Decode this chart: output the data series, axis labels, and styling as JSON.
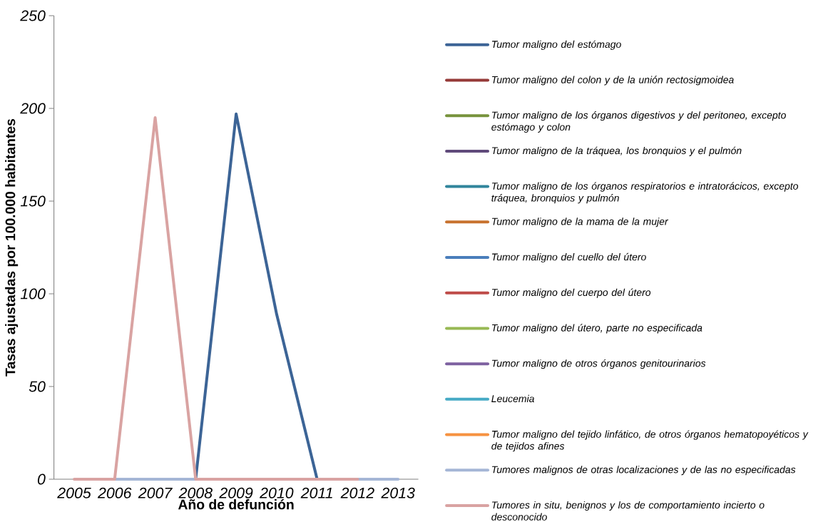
{
  "chart_data": {
    "type": "line",
    "xlabel": "Año de defunción",
    "ylabel": "Tasas ajustadas por 100.000 habitantes",
    "categories": [
      "2005",
      "2006",
      "2007",
      "2008",
      "2009",
      "2010",
      "2011",
      "2012",
      "2013"
    ],
    "ylim": [
      0,
      250
    ],
    "yticks": [
      0,
      50,
      100,
      150,
      200,
      250
    ],
    "grid": false,
    "legend": "right",
    "marker": "none",
    "line_style": "solid",
    "series": [
      {
        "name": "Tumor maligno del estómago",
        "color": "#3c6496",
        "values": [
          null,
          null,
          null,
          0,
          197,
          89,
          0,
          null,
          null
        ]
      },
      {
        "name": "Tumor maligno del colon y de la unión rectosigmoidea",
        "color": "#963a38",
        "values": [
          null,
          null,
          null,
          null,
          null,
          null,
          null,
          null,
          null
        ]
      },
      {
        "name": "Tumor maligno de los órganos digestivos y del peritoneo, excepto estómago y colon",
        "color": "#77933c",
        "values": [
          null,
          null,
          null,
          null,
          null,
          null,
          null,
          null,
          null
        ]
      },
      {
        "name": "Tumor maligno de la tráquea, los bronquios y el pulmón",
        "color": "#604a7b",
        "values": [
          null,
          null,
          null,
          null,
          null,
          null,
          null,
          null,
          null
        ]
      },
      {
        "name": "Tumor maligno de los órganos respiratorios e intratorácicos, excepto tráquea, bronquios y pulmón",
        "color": "#31859c",
        "values": [
          null,
          null,
          null,
          null,
          null,
          null,
          null,
          null,
          null
        ]
      },
      {
        "name": "Tumor maligno de la mama de la mujer",
        "color": "#c8722e",
        "values": [
          null,
          null,
          null,
          null,
          null,
          null,
          null,
          null,
          null
        ]
      },
      {
        "name": "Tumor maligno del cuello del útero",
        "color": "#4a7ebb",
        "values": [
          null,
          null,
          null,
          null,
          null,
          null,
          null,
          null,
          null
        ]
      },
      {
        "name": "Tumor maligno del cuerpo del útero",
        "color": "#be4b48",
        "values": [
          null,
          null,
          null,
          null,
          null,
          null,
          null,
          null,
          null
        ]
      },
      {
        "name": "Tumor maligno del útero, parte no especificada",
        "color": "#98b954",
        "values": [
          null,
          null,
          null,
          null,
          null,
          null,
          null,
          null,
          null
        ]
      },
      {
        "name": "Tumor maligno de otros órganos genitourinarios",
        "color": "#7d60a0",
        "values": [
          null,
          null,
          null,
          null,
          null,
          null,
          null,
          null,
          null
        ]
      },
      {
        "name": "Leucemia",
        "color": "#46aac5",
        "values": [
          null,
          null,
          null,
          null,
          null,
          null,
          null,
          null,
          null
        ]
      },
      {
        "name": "Tumor maligno del tejido linfático, de otros órganos hematopoyéticos y de tejidos afines",
        "color": "#f69240",
        "values": [
          null,
          null,
          null,
          null,
          null,
          null,
          null,
          null,
          null
        ]
      },
      {
        "name": "Tumores malignos de otras localizaciones y de las no especificadas",
        "color": "#a5b6d6",
        "values": [
          null,
          0,
          0,
          0,
          null,
          null,
          null,
          0,
          0
        ]
      },
      {
        "name": "Tumores in situ, benignos y los de comportamiento incierto o desconocido",
        "color": "#d9a3a2",
        "values": [
          0,
          0,
          195,
          0,
          0,
          0,
          0,
          0,
          null
        ]
      }
    ]
  }
}
